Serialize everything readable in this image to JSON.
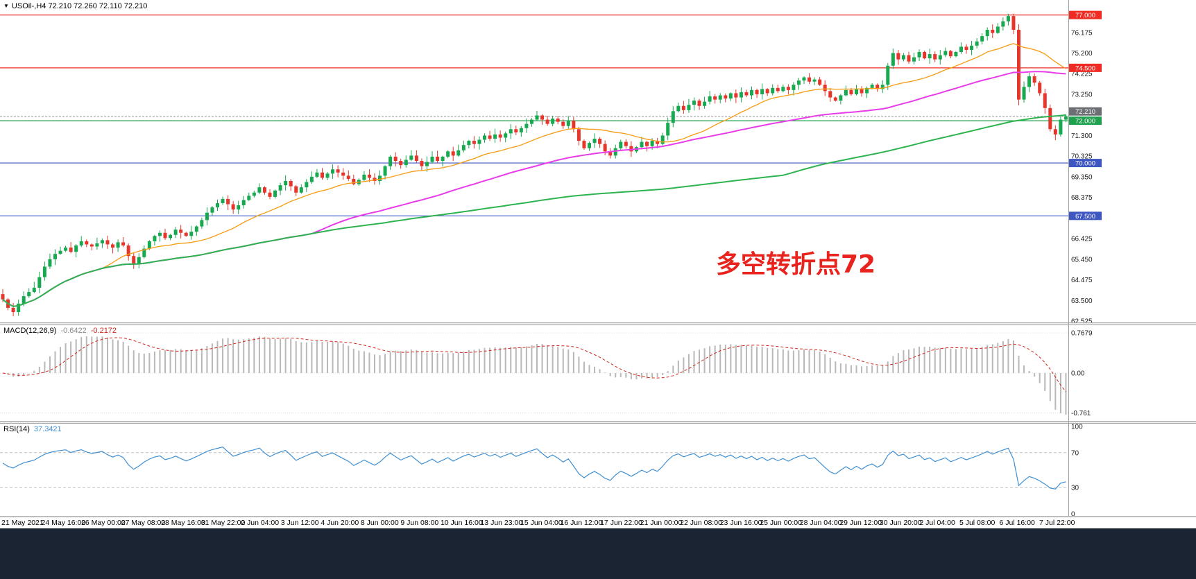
{
  "header": {
    "marker": "▼",
    "symbol_info": "USOil-,H4  72.210 72.260 72.110 72.210"
  },
  "annotation": {
    "text": "多空转折点72",
    "color": "#e8231d"
  },
  "macd": {
    "name": "MACD(12,26,9)",
    "value_main": "-0.6422",
    "value_signal": "-0.2172",
    "value_main_color": "#8c8c8c",
    "value_signal_color": "#c8281e",
    "axis_labels": [
      {
        "v": 0.7679,
        "label": "0.7679"
      },
      {
        "v": 0,
        "label": "0.00"
      },
      {
        "v": -0.761,
        "label": "-0.761"
      }
    ],
    "range": [
      -0.85,
      0.85
    ],
    "histogram_color": "#b8b8b8",
    "signal_color": "#d02418"
  },
  "rsi": {
    "name": "RSI(14)",
    "value": "37.3421",
    "axis_labels": [
      {
        "v": 100,
        "label": "100"
      },
      {
        "v": 70,
        "label": "70"
      },
      {
        "v": 30,
        "label": "30"
      },
      {
        "v": 0,
        "label": "0"
      }
    ],
    "levels": [
      70,
      30
    ],
    "range": [
      0,
      100
    ],
    "line_color": "#3f8fd2"
  },
  "footer": {
    "color": "#1b2433"
  },
  "chart_data": {
    "type": "candlestick",
    "symbol": "USOil-",
    "timeframe": "H4",
    "title": "USOil-,H4 72.210 72.260 72.110 72.210",
    "price_range": [
      62.46,
      77.25
    ],
    "closes": [
      63.55,
      63.15,
      62.95,
      63.35,
      63.7,
      63.9,
      64.1,
      64.6,
      65.1,
      65.45,
      65.7,
      65.85,
      66.0,
      65.8,
      66.1,
      66.3,
      66.15,
      66.05,
      66.2,
      66.35,
      66.15,
      66.0,
      66.25,
      66.1,
      65.6,
      65.25,
      65.55,
      65.95,
      66.3,
      66.55,
      66.7,
      66.45,
      66.6,
      66.85,
      66.7,
      66.55,
      66.75,
      67.0,
      67.3,
      67.65,
      67.9,
      68.1,
      68.3,
      68.05,
      67.8,
      68.0,
      68.25,
      68.45,
      68.6,
      68.85,
      68.6,
      68.4,
      68.7,
      68.95,
      69.15,
      68.9,
      68.6,
      68.85,
      69.1,
      69.35,
      69.55,
      69.3,
      69.5,
      69.7,
      69.55,
      69.4,
      69.25,
      69.0,
      69.2,
      69.45,
      69.3,
      69.15,
      69.4,
      69.85,
      70.3,
      70.1,
      69.9,
      70.15,
      70.35,
      70.1,
      69.85,
      70.05,
      70.3,
      70.1,
      70.3,
      70.55,
      70.35,
      70.6,
      70.85,
      71.05,
      70.9,
      71.1,
      71.3,
      71.15,
      71.35,
      71.2,
      71.4,
      71.6,
      71.45,
      71.65,
      71.85,
      72.05,
      72.25,
      72.05,
      71.85,
      72.1,
      71.95,
      71.75,
      72.0,
      71.6,
      71.05,
      70.7,
      70.95,
      71.15,
      70.9,
      70.55,
      70.35,
      70.7,
      71.0,
      70.8,
      70.55,
      70.75,
      71.0,
      70.8,
      71.05,
      70.9,
      71.3,
      71.9,
      72.45,
      72.7,
      72.5,
      72.75,
      72.95,
      72.7,
      72.9,
      73.15,
      73.0,
      73.2,
      73.05,
      73.3,
      73.1,
      73.35,
      73.2,
      73.45,
      73.25,
      73.5,
      73.3,
      73.55,
      73.4,
      73.6,
      73.45,
      73.7,
      73.9,
      74.05,
      73.85,
      73.95,
      73.7,
      73.4,
      73.1,
      72.95,
      73.2,
      73.45,
      73.25,
      73.5,
      73.3,
      73.55,
      73.7,
      73.5,
      73.7,
      74.6,
      75.2,
      74.9,
      75.1,
      74.8,
      75.0,
      75.25,
      74.95,
      75.15,
      74.9,
      75.1,
      75.3,
      75.05,
      75.25,
      75.5,
      75.35,
      75.55,
      75.75,
      76.0,
      76.3,
      76.15,
      76.45,
      76.7,
      76.95,
      76.3,
      73.0,
      73.6,
      74.1,
      73.8,
      73.3,
      72.6,
      71.6,
      71.35,
      72.05,
      72.21
    ],
    "candle_up_color": "#17a94f",
    "candle_down_color": "#e6352b",
    "y_axis_ticks": [
      76.175,
      75.2,
      74.225,
      73.25,
      71.3,
      70.325,
      69.35,
      68.375,
      66.425,
      65.45,
      64.475,
      63.5,
      62.525
    ],
    "horizontal_levels": [
      {
        "price": 77.0,
        "label": "77.000",
        "color": "#ef2b23"
      },
      {
        "price": 74.5,
        "label": "74.500",
        "color": "#ef2b23"
      },
      {
        "price": 72.0,
        "label": "72.000",
        "color": "#1fa14e"
      },
      {
        "price": 70.0,
        "label": "70.000",
        "color": "#3d56c0"
      },
      {
        "price": 67.5,
        "label": "67.500",
        "color": "#3d56c0"
      }
    ],
    "bid": {
      "price": 72.21,
      "label": "72.210",
      "badge_color": "#6b6f73"
    },
    "moving_averages": [
      {
        "name": "fast",
        "window": 20,
        "color": "#f6a01b"
      },
      {
        "name": "medium",
        "window": 60,
        "color": "#e93ce9"
      },
      {
        "name": "slow",
        "window": 150,
        "color": "#2eb44f"
      }
    ],
    "indicators": [
      {
        "name": "MACD",
        "params": [
          12,
          26,
          9
        ],
        "last_values": [
          -0.6422,
          -0.2172
        ]
      },
      {
        "name": "RSI",
        "params": [
          14
        ],
        "last_value": 37.3421
      }
    ],
    "annotation": "多空转折点72",
    "x_axis_labels": [
      "21 May 2021",
      "24 May 16:00",
      "26 May 00:00",
      "27 May 08:00",
      "28 May 16:00",
      "31 May 22:00",
      "2 Jun 04:00",
      "3 Jun 12:00",
      "4 Jun 20:00",
      "8 Jun 00:00",
      "9 Jun 08:00",
      "10 Jun 16:00",
      "13 Jun 23:00",
      "15 Jun 04:00",
      "16 Jun 12:00",
      "17 Jun 22:00",
      "21 Jun 00:00",
      "22 Jun 08:00",
      "23 Jun 16:00",
      "25 Jun 00:00",
      "28 Jun 04:00",
      "29 Jun 12:00",
      "30 Jun 20:00",
      "2 Jul 04:00",
      "5 Jul 08:00",
      "6 Jul 16:00",
      "7 Jul 22:00"
    ]
  }
}
